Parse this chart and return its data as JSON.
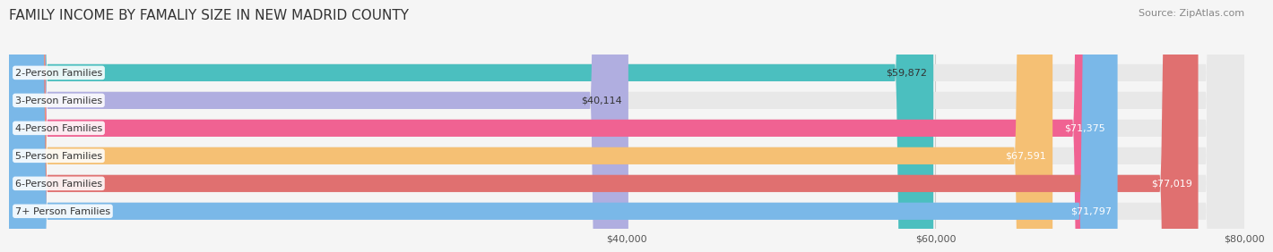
{
  "title": "FAMILY INCOME BY FAMALIY SIZE IN NEW MADRID COUNTY",
  "source": "Source: ZipAtlas.com",
  "categories": [
    "2-Person Families",
    "3-Person Families",
    "4-Person Families",
    "5-Person Families",
    "6-Person Families",
    "7+ Person Families"
  ],
  "values": [
    59872,
    40114,
    71375,
    67591,
    77019,
    71797
  ],
  "bar_colors": [
    "#4bbfbf",
    "#b0aee0",
    "#f06292",
    "#f5c074",
    "#e07070",
    "#7ab8e8"
  ],
  "labels": [
    "$59,872",
    "$40,114",
    "$71,375",
    "$67,591",
    "$77,019",
    "$71,797"
  ],
  "label_colors": [
    "#333333",
    "#333333",
    "#ffffff",
    "#ffffff",
    "#ffffff",
    "#ffffff"
  ],
  "xmin": 0,
  "xmax": 80000,
  "xticks": [
    40000,
    60000,
    80000
  ],
  "xticklabels": [
    "$40,000",
    "$60,000",
    "$80,000"
  ],
  "bg_color": "#f5f5f5",
  "bar_bg_color": "#e8e8e8",
  "bar_height": 0.62,
  "title_fontsize": 11,
  "source_fontsize": 8,
  "label_fontsize": 8,
  "category_fontsize": 8
}
